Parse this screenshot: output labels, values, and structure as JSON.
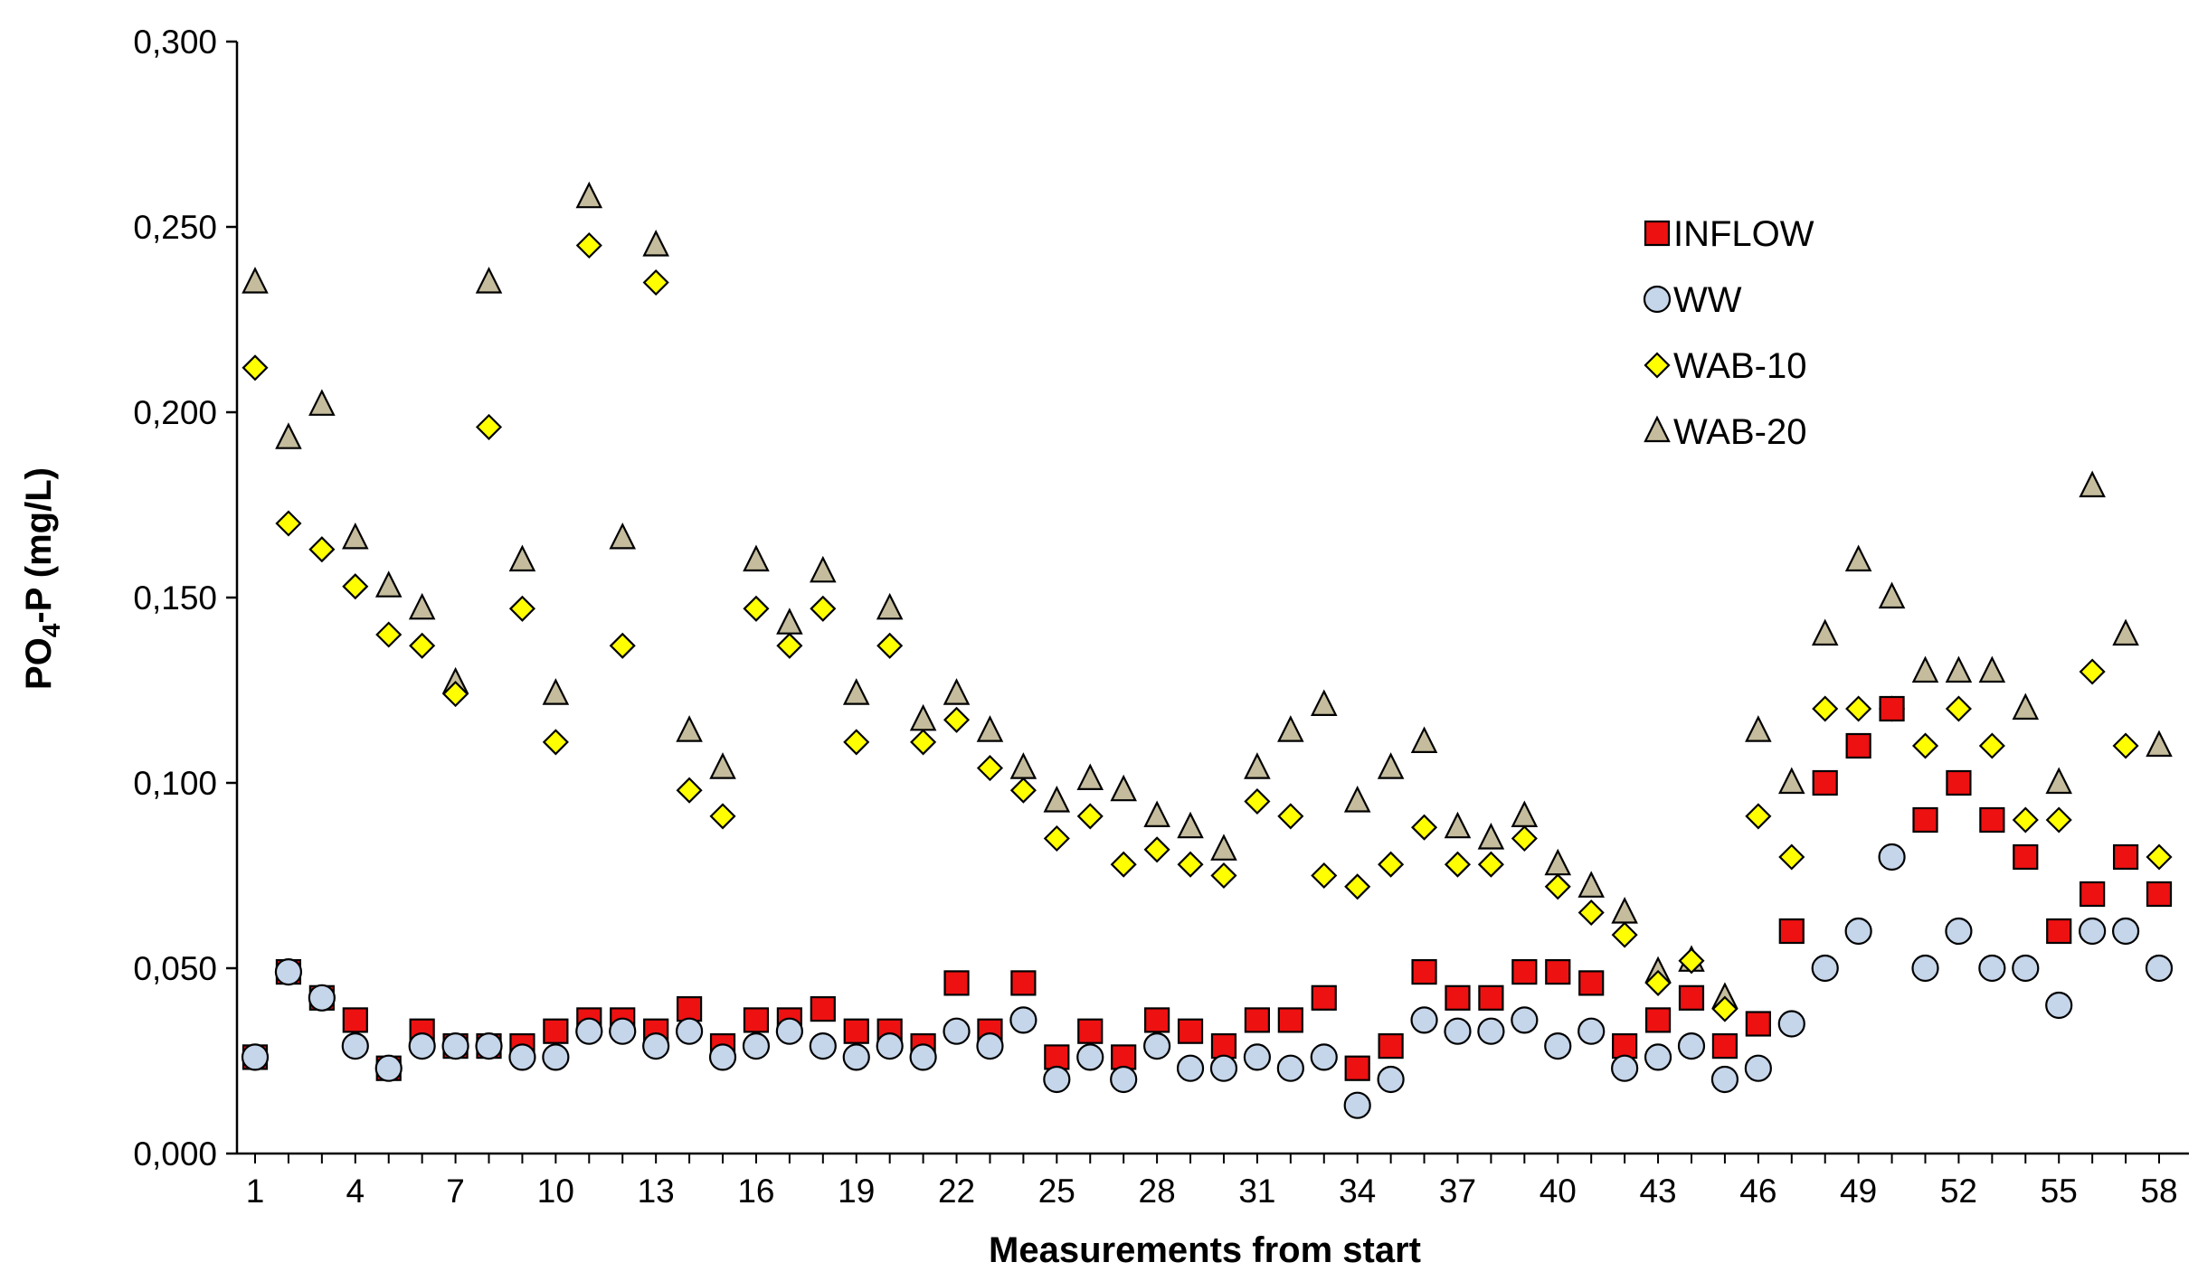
{
  "chart_data": {
    "type": "scatter",
    "title": "",
    "xlabel": "Measurements from start",
    "ylabel_main": "PO",
    "ylabel_sub": "4",
    "ylabel_rest": "-P (mg/L)",
    "ylim": [
      0,
      0.3
    ],
    "xlim": [
      1,
      58
    ],
    "y_ticks": [
      "0,000",
      "0,050",
      "0,100",
      "0,150",
      "0,200",
      "0,250",
      "0,300"
    ],
    "y_tick_values": [
      0,
      0.05,
      0.1,
      0.15,
      0.2,
      0.25,
      0.3
    ],
    "x_ticks": [
      "1",
      "4",
      "7",
      "10",
      "13",
      "16",
      "19",
      "22",
      "25",
      "28",
      "31",
      "34",
      "37",
      "40",
      "43",
      "46",
      "49",
      "52",
      "55",
      "58"
    ],
    "x_tick_values": [
      1,
      4,
      7,
      10,
      13,
      16,
      19,
      22,
      25,
      28,
      31,
      34,
      37,
      40,
      43,
      46,
      49,
      52,
      55,
      58
    ],
    "legend_position": "top-right",
    "x": [
      1,
      2,
      3,
      4,
      5,
      6,
      7,
      8,
      9,
      10,
      11,
      12,
      13,
      14,
      15,
      16,
      17,
      18,
      19,
      20,
      21,
      22,
      23,
      24,
      25,
      26,
      27,
      28,
      29,
      30,
      31,
      32,
      33,
      34,
      35,
      36,
      37,
      38,
      39,
      40,
      41,
      42,
      43,
      44,
      45,
      46,
      47,
      48,
      49,
      50,
      51,
      52,
      53,
      54,
      55,
      56,
      57,
      58
    ],
    "series": [
      {
        "name": "INFLOW",
        "marker": "square",
        "fill": "#ee1111",
        "values": [
          0.026,
          0.049,
          0.042,
          0.036,
          0.023,
          0.033,
          0.029,
          0.029,
          0.029,
          0.033,
          0.036,
          0.036,
          0.033,
          0.039,
          0.029,
          0.036,
          0.036,
          0.039,
          0.033,
          0.033,
          0.029,
          0.046,
          0.033,
          0.046,
          0.026,
          0.033,
          0.026,
          0.036,
          0.033,
          0.029,
          0.036,
          0.036,
          0.042,
          0.023,
          0.029,
          0.049,
          0.042,
          0.042,
          0.049,
          0.049,
          0.046,
          0.029,
          0.036,
          0.042,
          0.029,
          0.035,
          0.06,
          0.1,
          0.11,
          0.12,
          0.09,
          0.1,
          0.09,
          0.08,
          0.06,
          0.07,
          0.08,
          0.07
        ]
      },
      {
        "name": "WW",
        "marker": "circle",
        "fill": "#c5d5ea",
        "values": [
          0.026,
          0.049,
          0.042,
          0.029,
          0.023,
          0.029,
          0.029,
          0.029,
          0.026,
          0.026,
          0.033,
          0.033,
          0.029,
          0.033,
          0.026,
          0.029,
          0.033,
          0.029,
          0.026,
          0.029,
          0.026,
          0.033,
          0.029,
          0.036,
          0.02,
          0.026,
          0.02,
          0.029,
          0.023,
          0.023,
          0.026,
          0.023,
          0.026,
          0.013,
          0.02,
          0.036,
          0.033,
          0.033,
          0.036,
          0.029,
          0.033,
          0.023,
          0.026,
          0.029,
          0.02,
          0.023,
          0.035,
          0.05,
          0.06,
          0.08,
          0.05,
          0.06,
          0.05,
          0.05,
          0.04,
          0.06,
          0.06,
          0.05
        ]
      },
      {
        "name": "WAB-10",
        "marker": "diamond",
        "fill": "#ffff00",
        "values": [
          0.212,
          0.17,
          0.163,
          0.153,
          0.14,
          0.137,
          0.124,
          0.196,
          0.147,
          0.111,
          0.245,
          0.137,
          0.235,
          0.098,
          0.091,
          0.147,
          0.137,
          0.147,
          0.111,
          0.137,
          0.111,
          0.117,
          0.104,
          0.098,
          0.085,
          0.091,
          0.078,
          0.082,
          0.078,
          0.075,
          0.095,
          0.091,
          0.075,
          0.072,
          0.078,
          0.088,
          0.078,
          0.078,
          0.085,
          0.072,
          0.065,
          0.059,
          0.046,
          0.052,
          0.039,
          0.091,
          0.08,
          0.12,
          0.12,
          0.12,
          0.11,
          0.12,
          0.11,
          0.09,
          0.09,
          0.13,
          0.11,
          0.08
        ]
      },
      {
        "name": "WAB-20",
        "marker": "triangle",
        "fill": "#c4bc9c",
        "values": [
          0.235,
          0.193,
          0.202,
          0.166,
          0.153,
          0.147,
          0.127,
          0.235,
          0.16,
          0.124,
          0.258,
          0.166,
          0.245,
          0.114,
          0.104,
          0.16,
          0.143,
          0.157,
          0.124,
          0.147,
          0.117,
          0.124,
          0.114,
          0.104,
          0.095,
          0.101,
          0.098,
          0.091,
          0.088,
          0.082,
          0.104,
          0.114,
          0.121,
          0.095,
          0.104,
          0.111,
          0.088,
          0.085,
          0.091,
          0.078,
          0.072,
          0.065,
          0.049,
          0.052,
          0.042,
          0.114,
          0.1,
          0.14,
          0.16,
          0.15,
          0.13,
          0.13,
          0.13,
          0.12,
          0.1,
          0.18,
          0.14,
          0.11
        ]
      }
    ]
  }
}
